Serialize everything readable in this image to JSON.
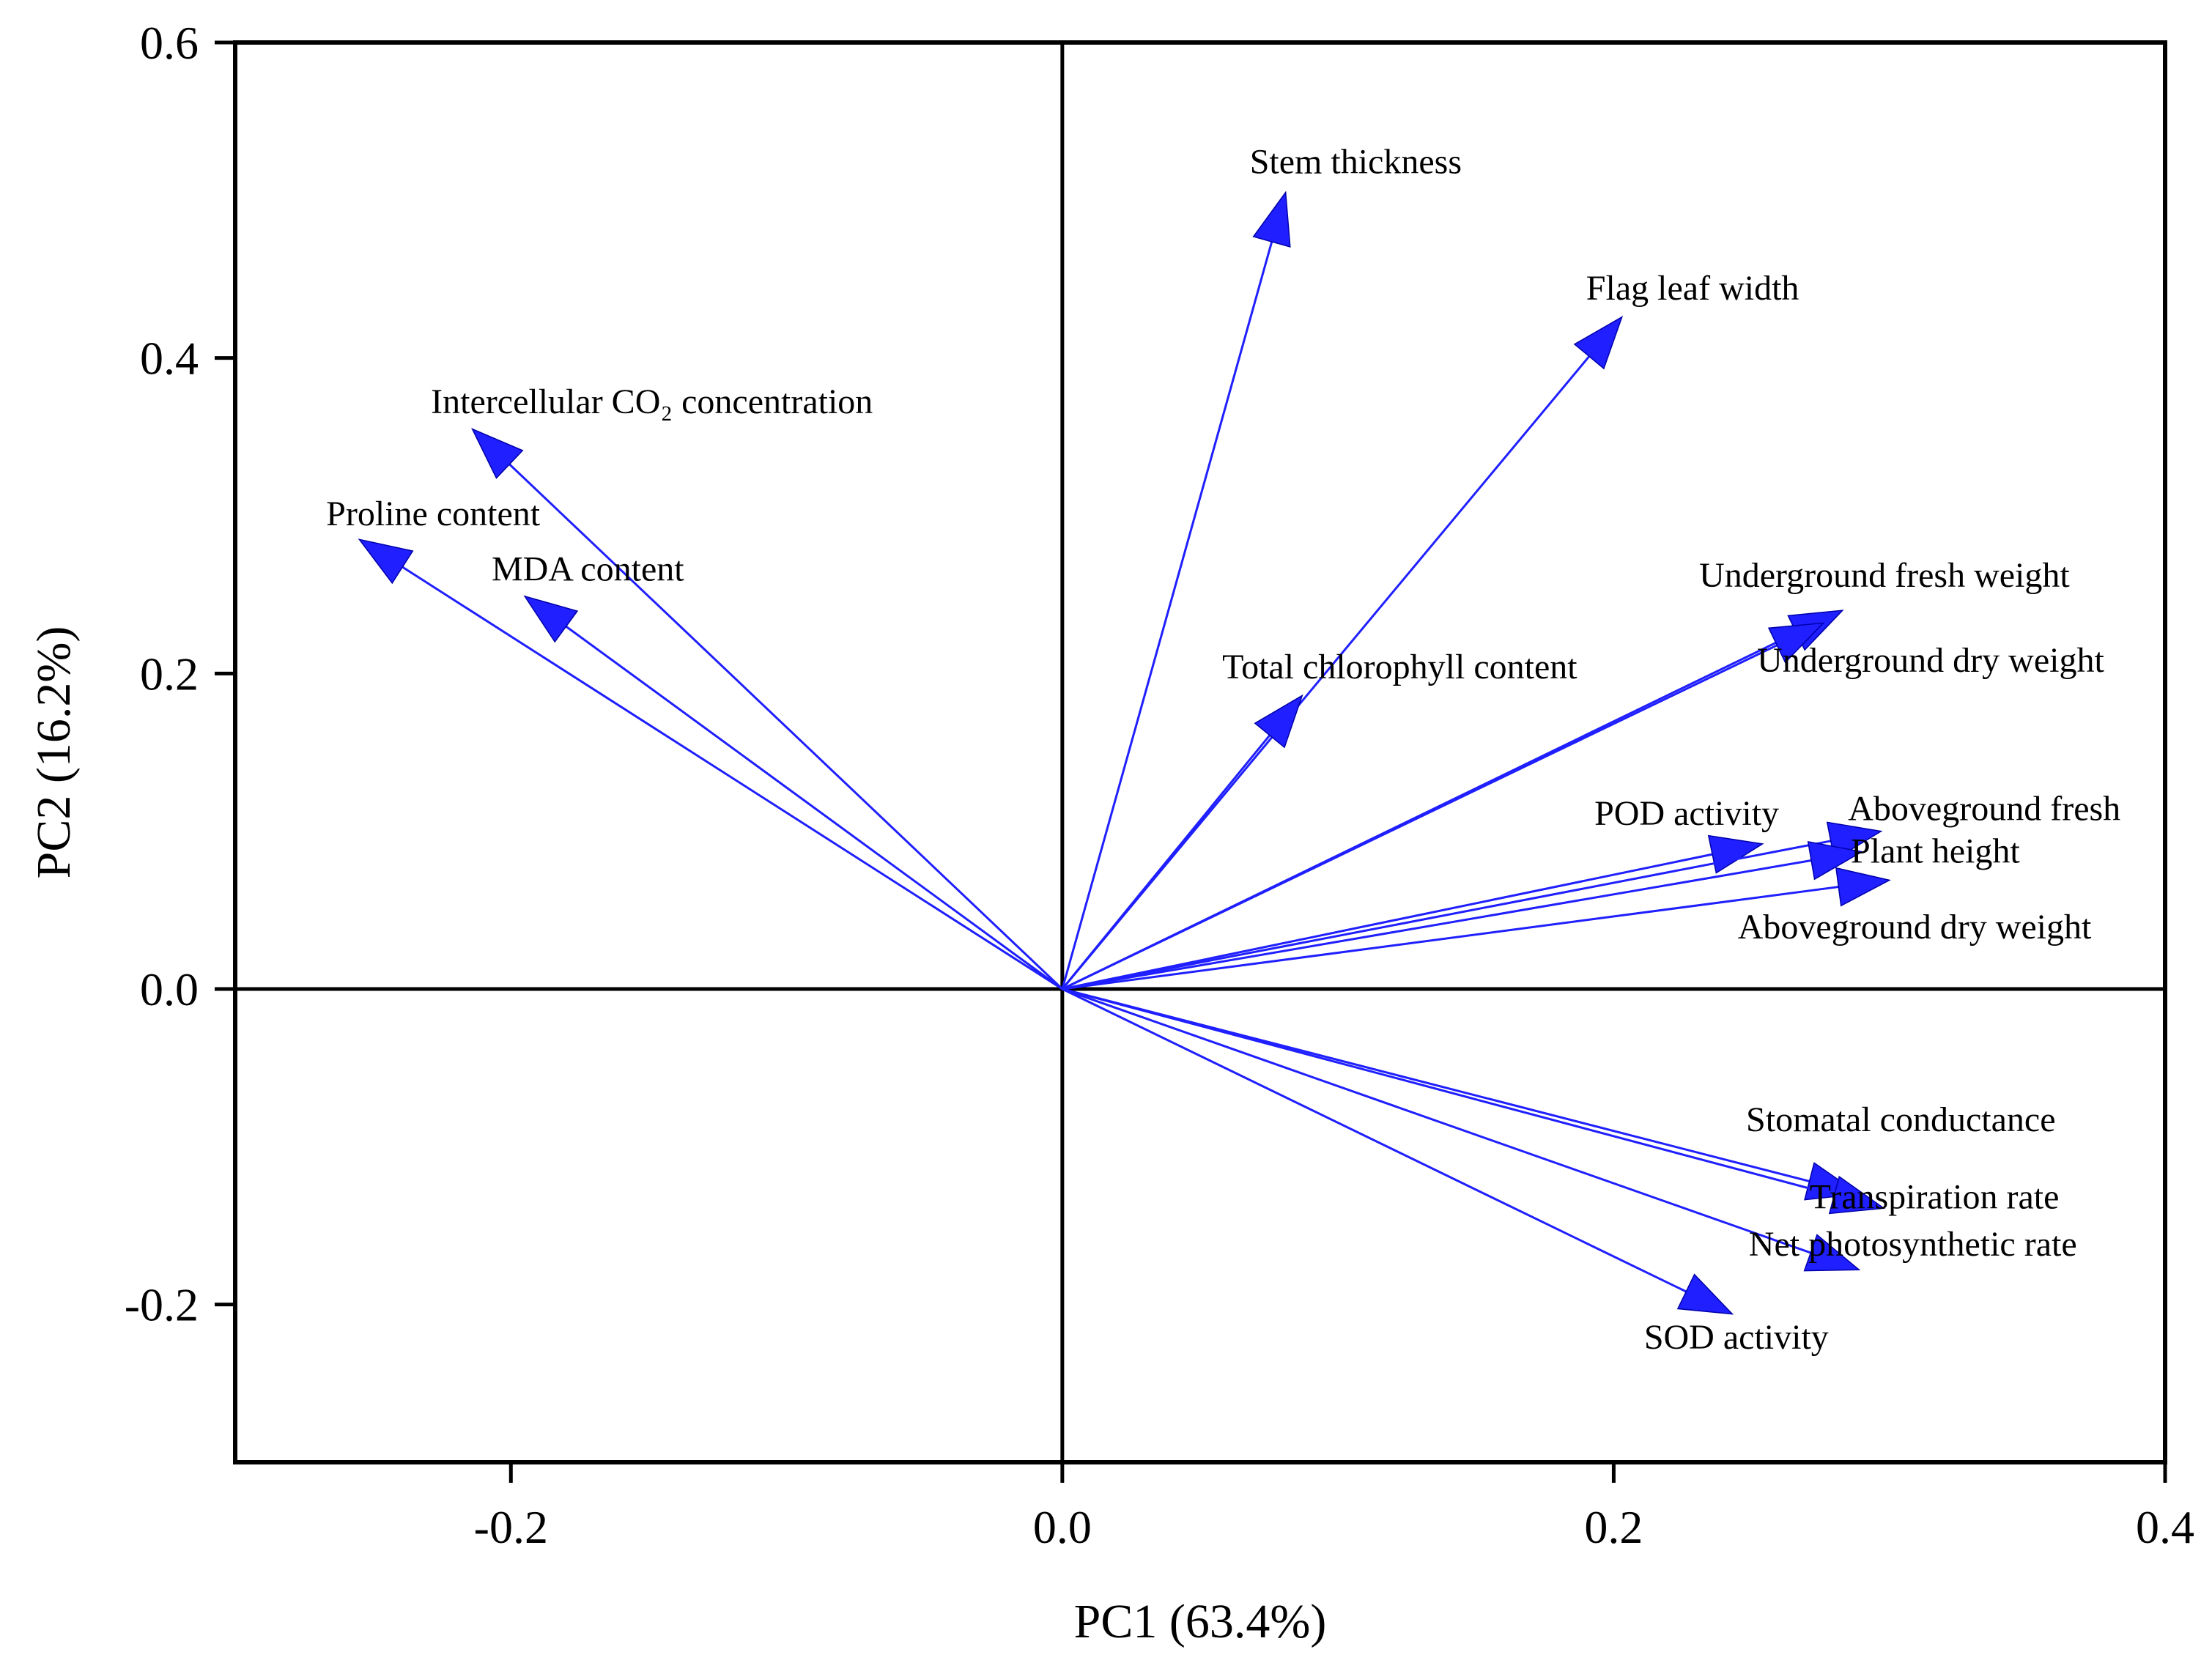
{
  "chart_data": {
    "type": "biplot",
    "xlabel": "PC1 (63.4%)",
    "ylabel": "PC2 (16.2%)",
    "xlim": [
      -0.3,
      0.4
    ],
    "ylim": [
      -0.3,
      0.6
    ],
    "xticks": [
      -0.2,
      0.0,
      0.2,
      0.4
    ],
    "xtick_labels": [
      "-0.2",
      "0.0",
      "0.2",
      "0.4"
    ],
    "yticks": [
      -0.2,
      0.0,
      0.2,
      0.4,
      0.6
    ],
    "ytick_labels": [
      "-0.2",
      "0.0",
      "0.2",
      "0.4",
      "0.6"
    ],
    "arrow_color": "#1f1fff",
    "zero_lines": true,
    "loadings": [
      {
        "name": "Stem thickness",
        "pc1": 0.081,
        "pc2": 0.505,
        "label_pc1": 0.068,
        "label_pc2": 0.517
      },
      {
        "name": "Flag leaf width",
        "pc1": 0.203,
        "pc2": 0.426,
        "label_pc1": 0.19,
        "label_pc2": 0.437
      },
      {
        "name": "Intercellular CO₂ concentration",
        "pc1": -0.214,
        "pc2": 0.355,
        "label_pc1": -0.229,
        "label_pc2": 0.365
      },
      {
        "name": "Proline content",
        "pc1": -0.255,
        "pc2": 0.285,
        "label_pc1": -0.267,
        "label_pc2": 0.294
      },
      {
        "name": "MDA content",
        "pc1": -0.195,
        "pc2": 0.249,
        "label_pc1": -0.207,
        "label_pc2": 0.259
      },
      {
        "name": "Total chlorophyll content",
        "pc1": 0.087,
        "pc2": 0.186,
        "label_pc1": 0.058,
        "label_pc2": 0.197
      },
      {
        "name": "Underground fresh weight",
        "pc1": 0.283,
        "pc2": 0.24,
        "label_pc1": 0.231,
        "label_pc2": 0.255
      },
      {
        "name": "Underground dry weight",
        "pc1": 0.276,
        "pc2": 0.232,
        "label_pc1": 0.252,
        "label_pc2": 0.201
      },
      {
        "name": "POD activity",
        "pc1": 0.254,
        "pc2": 0.092,
        "label_pc1": 0.193,
        "label_pc2": 0.104
      },
      {
        "name": "Aboveground fresh",
        "pc1": 0.297,
        "pc2": 0.1,
        "label_pc1": 0.285,
        "label_pc2": 0.107
      },
      {
        "name": "Plant height",
        "pc1": 0.29,
        "pc2": 0.087,
        "label_pc1": 0.286,
        "label_pc2": 0.08
      },
      {
        "name": "Aboveground dry weight",
        "pc1": 0.3,
        "pc2": 0.069,
        "label_pc1": 0.245,
        "label_pc2": 0.032
      },
      {
        "name": "Stomatal conductance",
        "pc1": 0.289,
        "pc2": -0.13,
        "label_pc1": 0.248,
        "label_pc2": -0.09
      },
      {
        "name": "Transpiration rate",
        "pc1": 0.298,
        "pc2": -0.139,
        "label_pc1": 0.271,
        "label_pc2": -0.139
      },
      {
        "name": "Net photosynthetic rate",
        "pc1": 0.289,
        "pc2": -0.178,
        "label_pc1": 0.249,
        "label_pc2": -0.169
      },
      {
        "name": "SOD activity",
        "pc1": 0.243,
        "pc2": -0.206,
        "label_pc1": 0.211,
        "label_pc2": -0.228
      }
    ]
  }
}
